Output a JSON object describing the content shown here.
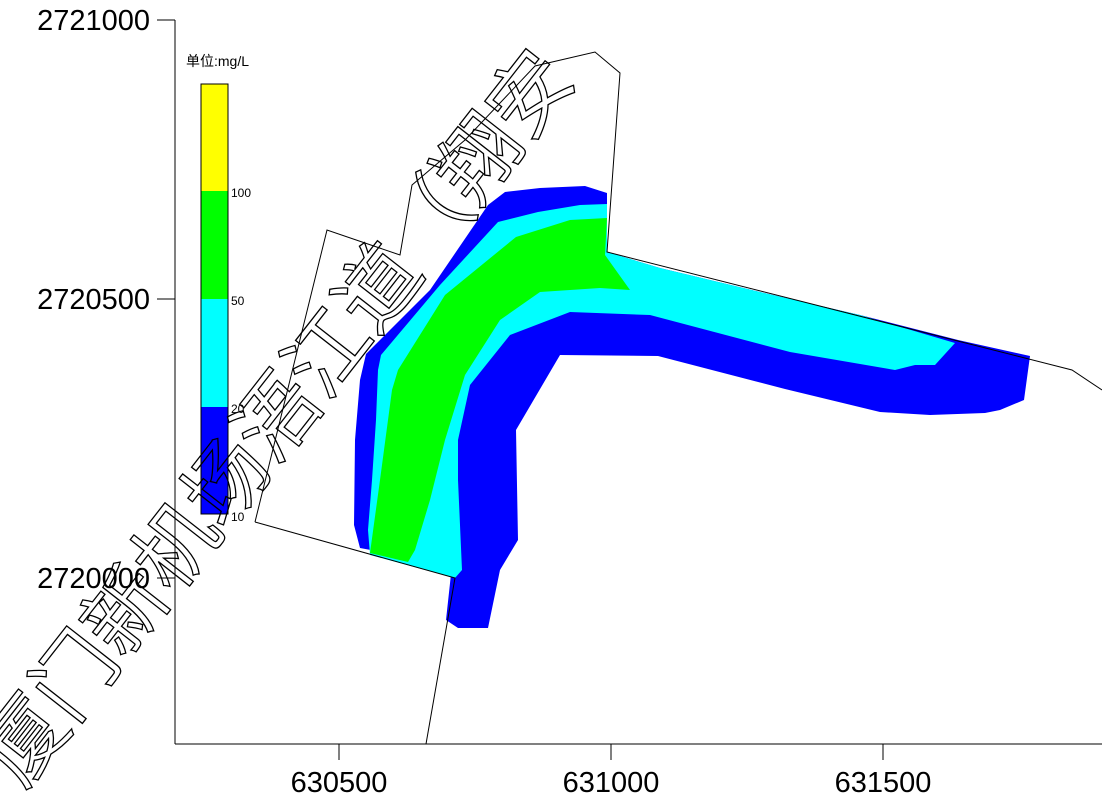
{
  "chart_data": {
    "type": "contour-map",
    "title": "",
    "xlabel": "",
    "ylabel": "",
    "x_ticks": [
      "630500",
      "631000",
      "631500"
    ],
    "y_ticks": [
      "2721000",
      "2720500",
      "2720000"
    ],
    "legend": {
      "title": "单位:mg/L",
      "placement": "top-left",
      "levels": [
        "10",
        "20",
        "50",
        "100"
      ],
      "bands": [
        {
          "range": "10-20",
          "color": "#0000ff"
        },
        {
          "range": "20-50",
          "color": "#00ffff"
        },
        {
          "range": "50-100",
          "color": "#00ff00"
        },
        {
          "range": ">100",
          "color": "#ffff00"
        }
      ]
    },
    "watermark": "厦门新机场浯江道（翔安"
  }
}
